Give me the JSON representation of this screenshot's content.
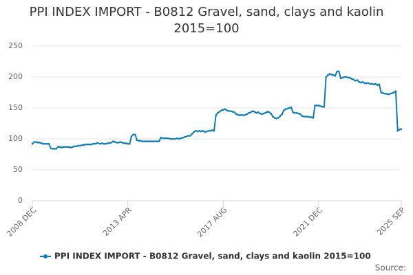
{
  "chart_data": {
    "type": "line",
    "title": "PPI INDEX IMPORT - B0812 Gravel, sand, clays and kaolin 2015=100",
    "source": "Source:",
    "categories": [
      "2008 DEC",
      null,
      null,
      null,
      null,
      null,
      null,
      null,
      null,
      null,
      null,
      null,
      null,
      null,
      null,
      null,
      null,
      null,
      null,
      null,
      null,
      null,
      null,
      null,
      null,
      null,
      null,
      null,
      null,
      null,
      null,
      null,
      null,
      null,
      null,
      null,
      null,
      null,
      null,
      null,
      null,
      null,
      null,
      null,
      null,
      null,
      null,
      null,
      null,
      null,
      null,
      null,
      "2013 APR",
      null,
      null,
      null,
      null,
      null,
      null,
      null,
      null,
      null,
      null,
      null,
      null,
      null,
      null,
      null,
      null,
      null,
      null,
      null,
      null,
      null,
      null,
      null,
      null,
      null,
      null,
      null,
      null,
      null,
      null,
      null,
      null,
      null,
      null,
      null,
      null,
      null,
      null,
      null,
      null,
      null,
      null,
      null,
      null,
      null,
      null,
      null,
      null,
      null,
      null,
      null,
      "2017 AUG",
      null,
      null,
      null,
      null,
      null,
      null,
      null,
      null,
      null,
      null,
      null,
      null,
      null,
      null,
      null,
      null,
      null,
      null,
      null,
      null,
      null,
      null,
      null,
      null,
      null,
      null,
      null,
      null,
      null,
      null,
      null,
      null,
      null,
      null,
      null,
      null,
      null,
      null,
      null,
      null,
      null,
      null,
      null,
      null,
      null,
      null,
      null,
      null,
      null,
      null,
      null,
      "2021 DEC",
      null,
      null,
      null,
      null,
      null,
      null,
      null,
      null,
      null,
      null,
      null,
      null,
      null,
      null,
      null,
      null,
      null,
      null,
      null,
      null,
      null,
      null,
      null,
      null,
      null,
      null,
      null,
      null,
      null,
      null,
      null,
      null,
      null,
      null,
      null,
      null,
      null,
      null,
      null,
      null,
      null,
      null,
      null,
      null,
      "2025 SEP"
    ],
    "series": [
      {
        "name": "PPI INDEX IMPORT - B0812 Gravel, sand, clays and kaolin 2015=100",
        "color": "#0e7cb8",
        "values": [
          92,
          95,
          95,
          94,
          94,
          93,
          92,
          92,
          92,
          92,
          85,
          84,
          84,
          84,
          87,
          87,
          86,
          87,
          87,
          87,
          87,
          86,
          87,
          88,
          88,
          89,
          89,
          90,
          90,
          91,
          91,
          91,
          91,
          92,
          92,
          93,
          93,
          92,
          93,
          92,
          92,
          93,
          93,
          94,
          96,
          95,
          94,
          94,
          95,
          94,
          93,
          93,
          92,
          92,
          104,
          107,
          107,
          98,
          97,
          97,
          96,
          96,
          96,
          96,
          96,
          96,
          96,
          96,
          96,
          96,
          102,
          101,
          101,
          101,
          101,
          100,
          100,
          100,
          100,
          101,
          100,
          101,
          102,
          103,
          104,
          105,
          105,
          108,
          111,
          113,
          112,
          113,
          112,
          113,
          111,
          112,
          113,
          113,
          114,
          113,
          138,
          142,
          144,
          146,
          147,
          148,
          146,
          145,
          145,
          144,
          143,
          140,
          139,
          138,
          139,
          138,
          139,
          140,
          142,
          143,
          145,
          144,
          142,
          143,
          141,
          140,
          141,
          142,
          144,
          143,
          141,
          136,
          134,
          133,
          134,
          137,
          140,
          146,
          148,
          149,
          150,
          151,
          143,
          142,
          142,
          141,
          140,
          137,
          136,
          136,
          136,
          135,
          135,
          134,
          154,
          154,
          154,
          153,
          152,
          152,
          200,
          203,
          205,
          204,
          203,
          202,
          209,
          209,
          198,
          199,
          200,
          200,
          199,
          199,
          197,
          196,
          194,
          195,
          192,
          191,
          192,
          190,
          190,
          190,
          189,
          189,
          188,
          189,
          187,
          188,
          175,
          174,
          173,
          173,
          172,
          173,
          174,
          175,
          177,
          113,
          115,
          116
        ]
      }
    ],
    "ylim": [
      0,
      250
    ],
    "yticks": [
      0,
      50,
      100,
      150,
      200,
      250
    ],
    "grid": true,
    "legend": "bottom"
  }
}
